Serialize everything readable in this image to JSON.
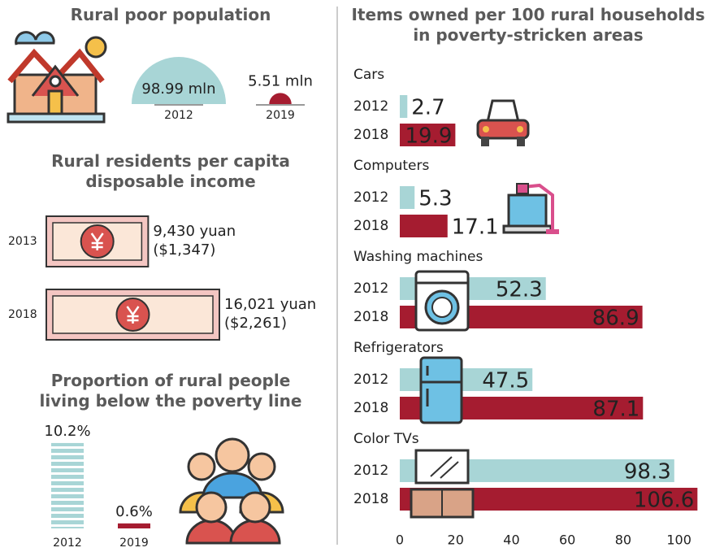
{
  "chart_data": [
    {
      "type": "semicircle",
      "title": "Rural poor population",
      "categories": [
        "2012",
        "2019"
      ],
      "values": [
        98.99,
        5.51
      ],
      "value_labels": [
        "98.99 mln",
        "5.51 mln"
      ],
      "colors": [
        "#a8d5d6",
        "#a51c30"
      ]
    },
    {
      "type": "banknote",
      "title": "Rural residents per capita disposable income",
      "categories": [
        "2013",
        "2018"
      ],
      "values": [
        9430,
        16021
      ],
      "value_labels": [
        "9,430 yuan",
        "16,021 yuan"
      ],
      "usd_values": [
        1347,
        2261
      ],
      "usd_labels": [
        "($1,347)",
        "($2,261)"
      ],
      "color": "#f4c6c2"
    },
    {
      "type": "bar",
      "title": "Proportion of rural people living below the poverty line",
      "categories": [
        "2012",
        "2019"
      ],
      "values": [
        10.2,
        0.6
      ],
      "value_labels": [
        "10.2%",
        "0.6%"
      ],
      "colors": [
        "#a8d5d6",
        "#a51c30"
      ]
    },
    {
      "type": "hbar",
      "title": "Items owned per 100 rural households in poverty-stricken areas",
      "categories": [
        "Cars",
        "Computers",
        "Washing machines",
        "Refrigerators",
        "Color TVs"
      ],
      "series": [
        {
          "name": "2012",
          "color": "#a8d5d6",
          "values": [
            2.7,
            5.3,
            52.3,
            47.5,
            98.3
          ]
        },
        {
          "name": "2018",
          "color": "#a51c30",
          "values": [
            19.9,
            17.1,
            86.9,
            87.1,
            106.6
          ]
        }
      ],
      "xlim": [
        0,
        110
      ],
      "xticks": [
        0,
        20,
        40,
        60,
        80,
        100
      ],
      "grid": false
    }
  ]
}
